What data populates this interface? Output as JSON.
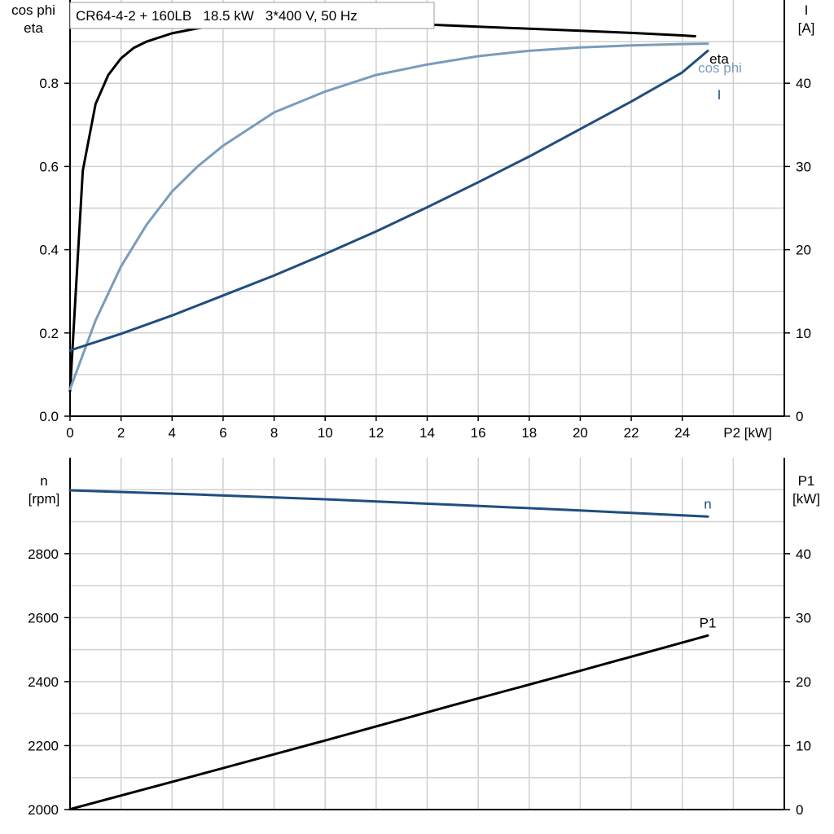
{
  "chart_data": [
    {
      "type": "line",
      "title": "CR64-4-2 + 160LB   18.5 kW   3*400 V, 50 Hz",
      "xlabel": "P2 [kW]",
      "xlim": [
        0,
        28
      ],
      "xticks": [
        0,
        2,
        4,
        6,
        8,
        10,
        12,
        14,
        16,
        18,
        20,
        22,
        24
      ],
      "ylabel_left": [
        "cos phi",
        "eta"
      ],
      "ylim_left": [
        0,
        1.0
      ],
      "yticks_left": [
        0.0,
        0.2,
        0.4,
        0.6,
        0.8
      ],
      "ylabel_right": [
        "I",
        "[A]"
      ],
      "ylim_right": [
        0,
        50
      ],
      "yticks_right": [
        0,
        10,
        20,
        30,
        40
      ],
      "grid": true,
      "series": [
        {
          "name": "eta",
          "axis": "left",
          "color": "#000000",
          "x": [
            0,
            0.5,
            1,
            1.5,
            2,
            2.5,
            3,
            4,
            5,
            6,
            8,
            10,
            12,
            14,
            16,
            18,
            20,
            22,
            24,
            24.5
          ],
          "y": [
            0.06,
            0.59,
            0.75,
            0.82,
            0.86,
            0.885,
            0.9,
            0.92,
            0.932,
            0.94,
            0.947,
            0.948,
            0.945,
            0.941,
            0.936,
            0.931,
            0.926,
            0.921,
            0.915,
            0.913
          ]
        },
        {
          "name": "cos phi",
          "axis": "left",
          "color": "#7a9cbb",
          "x": [
            0,
            1,
            2,
            3,
            4,
            5,
            6,
            8,
            10,
            12,
            14,
            16,
            18,
            20,
            22,
            24,
            25
          ],
          "y": [
            0.065,
            0.23,
            0.36,
            0.46,
            0.54,
            0.6,
            0.65,
            0.73,
            0.78,
            0.82,
            0.845,
            0.865,
            0.878,
            0.886,
            0.891,
            0.894,
            0.895
          ]
        },
        {
          "name": "I",
          "axis": "right",
          "color": "#1f4e7e",
          "x": [
            0,
            2,
            4,
            6,
            8,
            10,
            12,
            14,
            16,
            18,
            20,
            22,
            24,
            25
          ],
          "y": [
            7.9,
            9.9,
            12.1,
            14.5,
            16.9,
            19.5,
            22.2,
            25.1,
            28.1,
            31.2,
            34.5,
            37.8,
            41.3,
            43.9
          ]
        }
      ]
    },
    {
      "type": "line",
      "xlim": [
        0,
        28
      ],
      "ylabel_left": [
        "n",
        "[rpm]"
      ],
      "ylim_left": [
        2000,
        3100
      ],
      "yticks_left": [
        2000,
        2200,
        2400,
        2600,
        2800
      ],
      "ylabel_right": [
        "P1",
        "[kW]"
      ],
      "ylim_right": [
        0,
        55
      ],
      "yticks_right": [
        0,
        10,
        20,
        30,
        40
      ],
      "grid": true,
      "series": [
        {
          "name": "n",
          "axis": "left",
          "color": "#1f4e7e",
          "x": [
            0,
            5,
            10,
            15,
            20,
            25
          ],
          "y": [
            2998,
            2985,
            2970,
            2953,
            2935,
            2916
          ]
        },
        {
          "name": "P1",
          "axis": "right",
          "color": "#000000",
          "x": [
            0,
            5,
            10,
            15,
            20,
            25
          ],
          "y": [
            0.05,
            5.4,
            10.8,
            16.3,
            21.7,
            27.2
          ]
        }
      ]
    }
  ]
}
